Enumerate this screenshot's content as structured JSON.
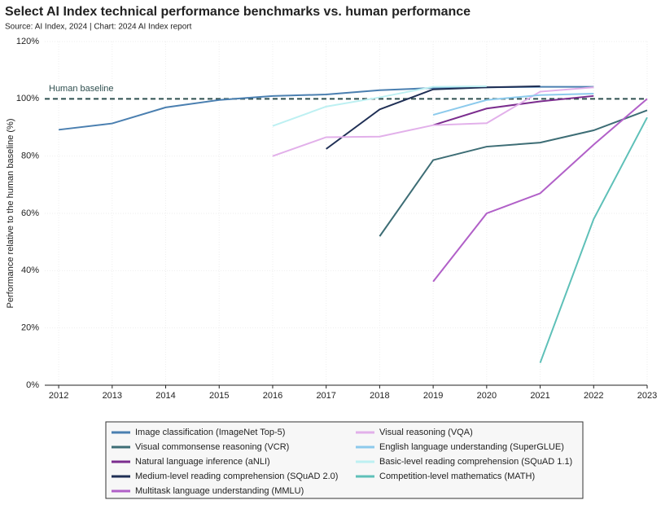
{
  "chart_data": {
    "type": "line",
    "title": "Select AI Index technical performance benchmarks vs. human performance",
    "subtitle": "Source: AI Index, 2024 | Chart: 2024 AI Index report",
    "y_label": "Performance relative to the human baseline (%)",
    "x": [
      2012,
      2013,
      2014,
      2015,
      2016,
      2017,
      2018,
      2019,
      2020,
      2021,
      2022,
      2023
    ],
    "xlim": [
      2011.74,
      2023
    ],
    "xticks": [
      2012,
      2013,
      2014,
      2015,
      2016,
      2017,
      2018,
      2019,
      2020,
      2021,
      2022,
      2023
    ],
    "ylim": [
      0,
      120
    ],
    "yticks": [
      {
        "value": 0,
        "label": "0%"
      },
      {
        "value": 20,
        "label": "20%"
      },
      {
        "value": 40,
        "label": "40%"
      },
      {
        "value": 60,
        "label": "60%"
      },
      {
        "value": 80,
        "label": "80%"
      },
      {
        "value": 100,
        "label": "100%"
      },
      {
        "value": 120,
        "label": "120%"
      }
    ],
    "grid": true,
    "baseline": {
      "value": 100,
      "label": "Human baseline"
    },
    "series": [
      {
        "name": "Image classification (ImageNet Top-5)",
        "color": "#4a7fb0",
        "values": [
          89.2,
          91.4,
          97,
          99.6,
          101,
          101.5,
          103,
          103.8,
          104,
          104.2,
          104.2,
          null
        ]
      },
      {
        "name": "Visual commonsense reasoning (VCR)",
        "color": "#3d6d75",
        "values": [
          null,
          null,
          null,
          null,
          null,
          null,
          52,
          78.6,
          83.3,
          84.7,
          89,
          96
        ]
      },
      {
        "name": "Natural language inference (aNLI)",
        "color": "#7b2d8e",
        "values": [
          null,
          null,
          null,
          null,
          null,
          null,
          null,
          90.8,
          96.6,
          99.1,
          101,
          null
        ]
      },
      {
        "name": "Medium-level reading comprehension (SQuAD 2.0)",
        "color": "#1f2f55",
        "values": [
          null,
          null,
          null,
          null,
          null,
          82.5,
          96.3,
          103.3,
          104,
          104.4,
          null,
          null
        ]
      },
      {
        "name": "Multitask language understanding (MMLU)",
        "color": "#b160c8",
        "values": [
          null,
          null,
          null,
          null,
          null,
          null,
          null,
          36.2,
          60,
          67,
          84,
          100
        ]
      },
      {
        "name": "Visual reasoning (VQA)",
        "color": "#e2b0ea",
        "values": [
          null,
          null,
          null,
          null,
          80,
          86.6,
          86.8,
          90.8,
          91.5,
          102.5,
          104,
          null
        ]
      },
      {
        "name": "English language understanding (SuperGLUE)",
        "color": "#8ccaec",
        "values": [
          null,
          null,
          null,
          null,
          null,
          null,
          null,
          94.4,
          99.6,
          101.3,
          101.8,
          null
        ]
      },
      {
        "name": "Basic-level reading comprehension (SQuAD 1.1)",
        "color": "#bdf0f2",
        "values": [
          null,
          null,
          null,
          null,
          90.5,
          97.3,
          100.5,
          104.2,
          104.4,
          null,
          null,
          null
        ]
      },
      {
        "name": "Competition-level mathematics (MATH)",
        "color": "#5ec0b8",
        "values": [
          null,
          null,
          null,
          null,
          null,
          null,
          null,
          null,
          null,
          7.8,
          58,
          93.5
        ]
      }
    ]
  }
}
